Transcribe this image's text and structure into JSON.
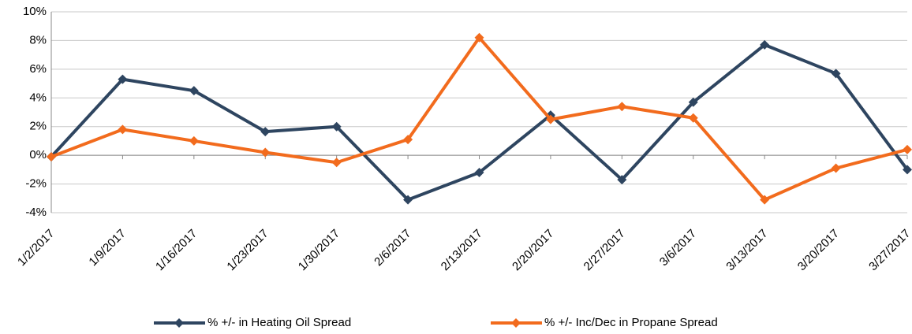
{
  "chart_data": {
    "type": "line",
    "categories": [
      "1/2/2017",
      "1/9/2017",
      "1/16/2017",
      "1/23/2017",
      "1/30/2017",
      "2/6/2017",
      "2/13/2017",
      "2/20/2017",
      "2/27/2017",
      "3/6/2017",
      "3/13/2017",
      "3/20/2017",
      "3/27/2017"
    ],
    "series": [
      {
        "name": "% +/- in Heating Oil Spread",
        "color": "#2e4560",
        "values": [
          -0.1,
          5.3,
          4.5,
          1.65,
          2.0,
          -3.1,
          -1.2,
          2.8,
          -1.7,
          3.7,
          7.7,
          5.7,
          -1.0
        ]
      },
      {
        "name": "% +/- Inc/Dec in Propane Spread",
        "color": "#f26b1d",
        "values": [
          -0.1,
          1.8,
          1.0,
          0.2,
          -0.5,
          1.1,
          8.2,
          2.5,
          3.4,
          2.6,
          -3.1,
          -0.9,
          0.4
        ]
      }
    ],
    "ylim": [
      -4,
      10
    ],
    "yticks": [
      {
        "value": -4,
        "label": "-4%"
      },
      {
        "value": -2,
        "label": "-2%"
      },
      {
        "value": 0,
        "label": "0%"
      },
      {
        "value": 2,
        "label": "2%"
      },
      {
        "value": 4,
        "label": "4%"
      },
      {
        "value": 6,
        "label": "6%"
      },
      {
        "value": 8,
        "label": "8%"
      },
      {
        "value": 10,
        "label": "10%"
      }
    ],
    "grid": true,
    "legend": "bottom"
  }
}
